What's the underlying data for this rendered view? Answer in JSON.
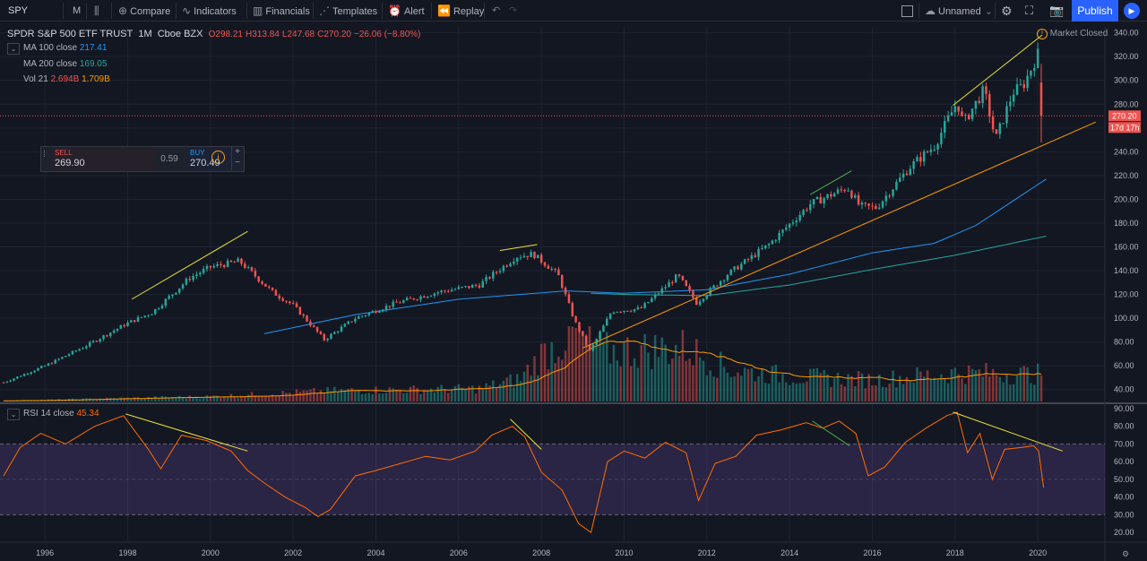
{
  "toolbar": {
    "symbol": "SPY",
    "interval": "M",
    "compare": "Compare",
    "indicators": "Indicators",
    "financials": "Financials",
    "templates": "Templates",
    "alert": "Alert",
    "replay": "Replay",
    "layout_name": "Unnamed",
    "publish": "Publish"
  },
  "legend": {
    "title": "SPDR S&P 500 ETF TRUST",
    "interval": "1M",
    "exchange": "Cboe BZX",
    "open": "O298.21",
    "high": "H313.84",
    "low": "L247.68",
    "close": "C270.20",
    "change": "−26.06 (−8.80%)",
    "market_status": "Market Closed",
    "ma100_label": "MA 100 close",
    "ma100_value": "217.41",
    "ma200_label": "MA 200 close",
    "ma200_value": "169.05",
    "vol_label": "Vol 21",
    "vol_value1": "2.694B",
    "vol_value2": "1.709B"
  },
  "trade": {
    "sell_label": "SELL",
    "sell_price": "269.90",
    "spread": "0.59",
    "buy_label": "BUY",
    "buy_price": "270.49"
  },
  "price_badge": "270.20",
  "countdown_badge": "17d 17h",
  "rsi_legend": {
    "label": "RSI 14 close",
    "value": "45.34"
  },
  "colors": {
    "background": "#131722",
    "up": "#26a69a",
    "down": "#ef5350",
    "ma100": "#2196f3",
    "ma200": "#26a69a",
    "vol_ma": "#ff9800",
    "rsi": "#ff6d00",
    "rsi_band": "#7e57c2",
    "trendline_yellow": "#e8e337",
    "trendline_green": "#4caf50",
    "trendline_orange": "#ff9800"
  },
  "chart_data": [
    {
      "type": "candlestick",
      "title": "SPDR S&P 500 ETF TRUST, 1M, Cboe BZX",
      "price_axis_ticks": [
        40,
        60,
        80,
        100,
        120,
        140,
        160,
        180,
        200,
        220,
        240,
        260,
        280,
        300,
        320,
        340
      ],
      "ylim": [
        30,
        345
      ],
      "x_axis_ticks": [
        "1996",
        "1998",
        "2000",
        "2002",
        "2004",
        "2006",
        "2008",
        "2010",
        "2012",
        "2014",
        "2016",
        "2018",
        "2020"
      ],
      "xlim": [
        1995.0,
        2021.6
      ],
      "last_close": 270.2,
      "key_points": {
        "t": [
          1995.0,
          1996.0,
          1997.0,
          1998.0,
          1998.6,
          1999.5,
          2000.0,
          2000.7,
          2001.5,
          2002.0,
          2002.75,
          2003.5,
          2004.5,
          2005.5,
          2006.5,
          2007.4,
          2007.8,
          2008.4,
          2008.8,
          2009.17,
          2009.7,
          2010.4,
          2011.3,
          2011.75,
          2012.5,
          2013.5,
          2014.5,
          2015.4,
          2015.7,
          2016.1,
          2016.9,
          2017.5,
          2018.05,
          2018.2,
          2018.7,
          2018.98,
          2019.4,
          2019.65,
          2020.0,
          2020.14
        ],
        "close": [
          46,
          60,
          77,
          96,
          105,
          134,
          143,
          148,
          122,
          111,
          82,
          100,
          113,
          122,
          128,
          152,
          154,
          137,
          98,
          72,
          106,
          108,
          136,
          113,
          137,
          162,
          196,
          210,
          194,
          193,
          227,
          245,
          282,
          264,
          292,
          250,
          290,
          296,
          322,
          270.2
        ]
      },
      "series": [
        {
          "name": "MA 100 close",
          "last": 217.41,
          "t": [
            2001.3,
            2003.5,
            2006.0,
            2008.6,
            2010.0,
            2012.0,
            2014.0,
            2016.0,
            2017.5,
            2018.5,
            2020.2
          ],
          "values": [
            87,
            103,
            116,
            123,
            121,
            124,
            137,
            155,
            163,
            178,
            217
          ]
        },
        {
          "name": "MA 200 close",
          "last": 169.05,
          "t": [
            2009.2,
            2010.0,
            2012.0,
            2014.0,
            2016.0,
            2018.0,
            2020.2
          ],
          "values": [
            121,
            120,
            119,
            128,
            141,
            153,
            169
          ]
        }
      ],
      "trendlines": [
        {
          "color": "yellow",
          "t": [
            1998.1,
            2000.9
          ],
          "values": [
            116,
            173
          ]
        },
        {
          "color": "yellow",
          "t": [
            2007.0,
            2007.9
          ],
          "values": [
            157,
            162
          ]
        },
        {
          "color": "green",
          "t": [
            2014.5,
            2015.5
          ],
          "values": [
            204,
            224
          ]
        },
        {
          "color": "yellow",
          "t": [
            2017.95,
            2020.1
          ],
          "values": [
            279,
            338
          ]
        },
        {
          "color": "orange",
          "t": [
            2009.0,
            2021.4
          ],
          "values": [
            75,
            265
          ]
        }
      ]
    },
    {
      "type": "bar",
      "title": "Vol 21",
      "last_values": [
        "2.694B",
        "1.709B"
      ],
      "volume_key_points": {
        "t": [
          1995.0,
          2000.0,
          2003.0,
          2006.5,
          2007.5,
          2008.0,
          2008.8,
          2009.5,
          2011.5,
          2012.5,
          2014.0,
          2016.0,
          2018.0,
          2020.0,
          2020.14
        ],
        "relative_volume": [
          0.01,
          0.07,
          0.15,
          0.18,
          0.32,
          0.65,
          0.95,
          0.7,
          0.75,
          0.45,
          0.35,
          0.3,
          0.4,
          0.38,
          0.45
        ]
      }
    },
    {
      "type": "line",
      "title": "RSI 14 close",
      "last": 45.34,
      "rsi_axis_ticks": [
        20,
        30,
        40,
        50,
        60,
        70,
        80,
        90
      ],
      "ylim": [
        15,
        92
      ],
      "bands": {
        "upper": 70,
        "lower": 30
      },
      "t": [
        1995.0,
        1995.4,
        1995.9,
        1996.5,
        1997.2,
        1997.9,
        1998.5,
        1998.8,
        1999.3,
        1999.9,
        2000.5,
        2000.9,
        2001.3,
        2001.8,
        2002.3,
        2002.6,
        2002.9,
        2003.5,
        2004.0,
        2004.6,
        2005.2,
        2005.8,
        2006.4,
        2006.8,
        2007.3,
        2007.6,
        2008.0,
        2008.5,
        2008.9,
        2009.2,
        2009.6,
        2010.0,
        2010.5,
        2011.0,
        2011.5,
        2011.8,
        2012.2,
        2012.7,
        2013.2,
        2013.8,
        2014.4,
        2014.8,
        2015.2,
        2015.6,
        2015.9,
        2016.3,
        2016.8,
        2017.3,
        2017.8,
        2018.05,
        2018.3,
        2018.6,
        2018.9,
        2019.2,
        2019.6,
        2019.9,
        2020.02,
        2020.14
      ],
      "values": [
        52,
        68,
        76,
        70,
        80,
        86,
        67,
        56,
        75,
        72,
        66,
        55,
        48,
        40,
        34,
        29,
        33,
        52,
        55,
        59,
        63,
        61,
        66,
        75,
        80,
        74,
        54,
        44,
        25,
        20,
        60,
        66,
        62,
        71,
        65,
        38,
        59,
        63,
        75,
        78,
        82,
        79,
        83,
        76,
        52,
        57,
        71,
        79,
        86,
        88,
        65,
        76,
        50,
        67,
        68,
        69,
        66,
        45.34
      ],
      "trendlines": [
        {
          "color": "yellow",
          "t": [
            1997.95,
            2000.9
          ],
          "values": [
            87,
            66
          ]
        },
        {
          "color": "yellow",
          "t": [
            2007.25,
            2008.0
          ],
          "values": [
            84,
            67
          ]
        },
        {
          "color": "green",
          "t": [
            2014.55,
            2015.45
          ],
          "values": [
            83,
            69
          ]
        },
        {
          "color": "yellow",
          "t": [
            2017.95,
            2020.6
          ],
          "values": [
            88,
            66
          ]
        }
      ]
    }
  ]
}
